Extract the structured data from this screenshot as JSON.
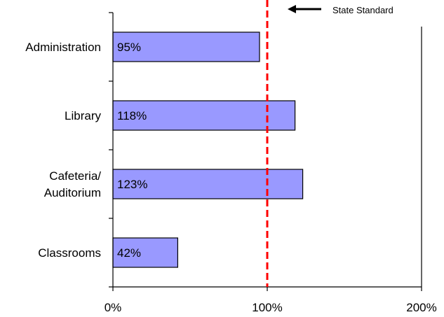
{
  "chart_data": {
    "type": "bar",
    "orientation": "horizontal",
    "title": "",
    "xlabel": "",
    "ylabel": "",
    "categories": [
      [
        "Administration"
      ],
      [
        "Library"
      ],
      [
        "Cafeteria/",
        "Auditorium"
      ],
      [
        "Classrooms"
      ]
    ],
    "values": [
      95,
      118,
      123,
      42
    ],
    "data_labels": [
      "95%",
      "118%",
      "123%",
      "42%"
    ],
    "xlim": [
      0,
      200
    ],
    "x_ticks": [
      0,
      100,
      200
    ],
    "x_tick_labels": [
      "0%",
      "100%",
      "200%"
    ],
    "grid": false,
    "bar_color": "#9999ff",
    "bar_edge_color": "#000000",
    "reference_line": {
      "value": 100,
      "label": "State Standard",
      "color": "#ff0000",
      "style": "dashed"
    }
  }
}
